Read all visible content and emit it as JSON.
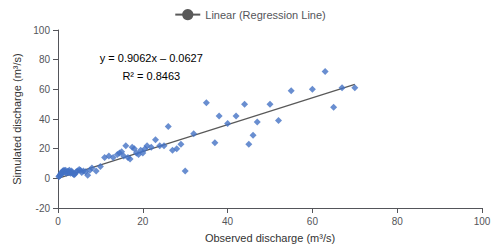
{
  "chart_data": {
    "type": "scatter",
    "xlabel": "Observed discharge (m³/s)",
    "ylabel": "Simulated discharge (m³/s)",
    "annotations": [
      "y = 0.9062x – 0.0627",
      "R² = 0.8463"
    ],
    "xlim": [
      0,
      100
    ],
    "ylim": [
      -20,
      100
    ],
    "xticks": [
      0,
      20,
      40,
      60,
      80,
      100
    ],
    "yticks": [
      -20,
      0,
      20,
      40,
      60,
      80,
      100
    ],
    "grid": false,
    "legend": "top",
    "series": [
      {
        "type": "scatter",
        "color": "#4472C4",
        "marker": "diamond",
        "x": [
          0.2,
          0.3,
          0.5,
          0.6,
          0.7,
          0.8,
          1.0,
          1.1,
          1.2,
          1.4,
          1.5,
          1.7,
          1.8,
          2.0,
          2.2,
          2.4,
          2.5,
          2.7,
          2.8,
          3.0,
          3.2,
          3.4,
          3.6,
          3.8,
          4.0,
          4.3,
          4.6,
          5.0,
          5.3,
          5.6,
          6.0,
          6.5,
          7.0,
          7.5,
          8.0,
          9.0,
          10.0,
          11.0,
          12.0,
          13.0,
          14.0,
          14.5,
          15.0,
          15.5,
          16.0,
          16.5,
          17.0,
          17.5,
          18.0,
          18.5,
          19.0,
          19.5,
          20.0,
          20.5,
          21.0,
          22.0,
          23.0,
          24.0,
          25.0,
          26.0,
          27.0,
          28.0,
          29.0,
          30.0,
          32.0,
          35.0,
          37.0,
          38.0,
          40.0,
          42.0,
          44.0,
          45.0,
          46.0,
          47.0,
          50.0,
          52.0,
          55.0,
          60.0,
          63.0,
          65.0,
          67.0,
          70.0
        ],
        "values": [
          1.0,
          1.5,
          2.0,
          3.0,
          2.5,
          4.0,
          3.5,
          5.0,
          4.5,
          5.5,
          5.0,
          4.0,
          5.5,
          3.5,
          4.5,
          5.0,
          4.0,
          5.5,
          4.0,
          3.5,
          5.0,
          4.0,
          3.0,
          2.5,
          3.0,
          4.5,
          5.0,
          6.0,
          5.5,
          4.0,
          5.0,
          4.5,
          2.0,
          5.5,
          7.0,
          5.0,
          8.0,
          14.0,
          15.0,
          14.0,
          16.0,
          17.0,
          18.0,
          15.0,
          22.0,
          14.0,
          13.0,
          21.0,
          20.0,
          17.0,
          16.0,
          19.0,
          17.0,
          20.0,
          22.0,
          21.0,
          26.0,
          22.0,
          22.0,
          35.0,
          19.0,
          20.0,
          23.0,
          5.0,
          30.0,
          51.0,
          24.0,
          42.0,
          37.0,
          42.0,
          50.0,
          23.0,
          29.0,
          38.0,
          50.0,
          39.0,
          59.0,
          60.0,
          72.0,
          48.0,
          61.0,
          61.0
        ]
      },
      {
        "type": "line",
        "name": "Linear (Regression Line)",
        "color": "#595959",
        "x": [
          0,
          70
        ],
        "values": [
          -0.0627,
          63.3713
        ]
      }
    ]
  }
}
